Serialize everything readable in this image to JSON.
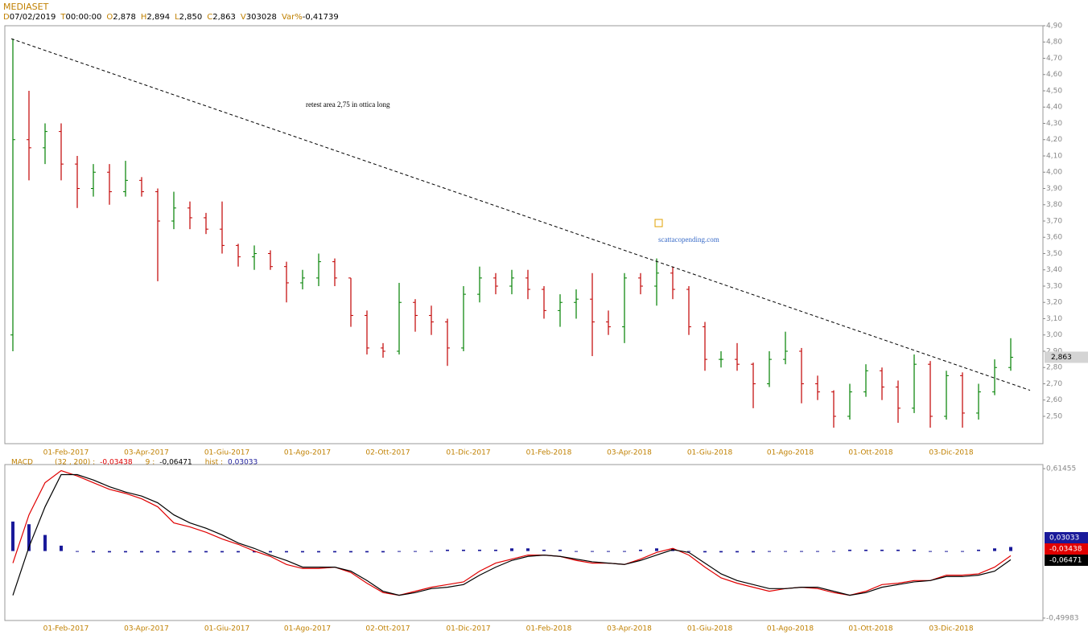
{
  "header": {
    "symbol": "MEDIASET",
    "fields": [
      {
        "label": "D",
        "value": "07/02/2019"
      },
      {
        "label": "T",
        "value": "00:00:00"
      },
      {
        "label": "O",
        "value": "2,878"
      },
      {
        "label": "H",
        "value": "2,894"
      },
      {
        "label": "L",
        "value": "2,850"
      },
      {
        "label": "C",
        "value": "2,863"
      },
      {
        "label": "V",
        "value": "303028"
      },
      {
        "label": "Var%",
        "value": "-0,41739"
      }
    ]
  },
  "chart_data": [
    {
      "type": "ohlc",
      "categories": [
        null,
        null,
        null,
        "01-Feb-2017",
        null,
        null,
        null,
        null,
        "03-Apr-2017",
        null,
        null,
        null,
        null,
        "01-Giu-2017",
        null,
        null,
        null,
        null,
        "01-Ago-2017",
        null,
        null,
        null,
        null,
        "02-Ott-2017",
        null,
        null,
        null,
        null,
        "01-Dic-2017",
        null,
        null,
        null,
        null,
        "01-Feb-2018",
        null,
        null,
        null,
        null,
        "03-Apr-2018",
        null,
        null,
        null,
        null,
        "01-Giu-2018",
        null,
        null,
        null,
        null,
        "01-Ago-2018",
        null,
        null,
        null,
        null,
        "01-Ott-2018",
        null,
        null,
        null,
        null,
        "03-Dic-2018",
        null,
        null,
        null,
        null
      ],
      "open": [
        3.0,
        4.2,
        4.15,
        4.25,
        4.05,
        3.9,
        4.0,
        3.88,
        3.95,
        3.88,
        3.7,
        3.78,
        3.72,
        3.65,
        3.55,
        3.48,
        3.5,
        3.42,
        3.32,
        3.35,
        3.45,
        3.35,
        3.12,
        2.92,
        2.9,
        3.2,
        3.12,
        3.08,
        2.92,
        3.25,
        3.35,
        3.3,
        3.35,
        3.28,
        3.15,
        3.2,
        3.22,
        3.08,
        3.05,
        3.35,
        3.3,
        3.38,
        3.28,
        3.05,
        2.85,
        2.85,
        2.82,
        2.7,
        2.85,
        2.9,
        2.7,
        2.65,
        2.5,
        2.65,
        2.78,
        2.68,
        2.55,
        2.82,
        2.5,
        2.75,
        2.52,
        2.65,
        2.8
      ],
      "high": [
        4.82,
        4.5,
        4.3,
        4.3,
        4.1,
        4.05,
        4.05,
        4.07,
        3.97,
        3.9,
        3.88,
        3.82,
        3.75,
        3.82,
        3.56,
        3.55,
        3.52,
        3.45,
        3.4,
        3.5,
        3.47,
        3.35,
        3.15,
        2.95,
        3.32,
        3.22,
        3.18,
        3.1,
        3.3,
        3.42,
        3.38,
        3.4,
        3.4,
        3.3,
        3.25,
        3.28,
        3.38,
        3.15,
        3.38,
        3.38,
        3.47,
        3.42,
        3.3,
        3.08,
        2.9,
        2.95,
        2.83,
        2.9,
        3.02,
        2.92,
        2.75,
        2.66,
        2.7,
        2.82,
        2.8,
        2.72,
        2.88,
        2.84,
        2.78,
        2.77,
        2.7,
        2.85,
        2.98
      ],
      "low": [
        2.9,
        3.95,
        4.05,
        3.95,
        3.78,
        3.85,
        3.8,
        3.85,
        3.85,
        3.33,
        3.65,
        3.65,
        3.62,
        3.5,
        3.42,
        3.4,
        3.4,
        3.2,
        3.28,
        3.3,
        3.3,
        3.05,
        2.88,
        2.86,
        2.88,
        3.02,
        3.0,
        2.81,
        2.9,
        3.2,
        3.25,
        3.25,
        3.22,
        3.1,
        3.05,
        3.1,
        2.87,
        3.0,
        2.95,
        3.25,
        3.18,
        3.22,
        3.0,
        2.78,
        2.8,
        2.78,
        2.55,
        2.68,
        2.82,
        2.58,
        2.6,
        2.43,
        2.48,
        2.62,
        2.6,
        2.46,
        2.52,
        2.43,
        2.48,
        2.43,
        2.48,
        2.63,
        2.78
      ],
      "close": [
        4.2,
        4.15,
        4.25,
        4.05,
        3.9,
        4.0,
        3.88,
        3.95,
        3.88,
        3.7,
        3.78,
        3.72,
        3.65,
        3.55,
        3.48,
        3.5,
        3.42,
        3.32,
        3.35,
        3.45,
        3.35,
        3.12,
        2.92,
        2.9,
        3.2,
        3.12,
        3.08,
        2.92,
        3.25,
        3.35,
        3.3,
        3.35,
        3.28,
        3.15,
        3.2,
        3.22,
        3.08,
        3.05,
        3.35,
        3.3,
        3.38,
        3.28,
        3.05,
        2.85,
        2.85,
        2.82,
        2.7,
        2.85,
        2.9,
        2.7,
        2.65,
        2.5,
        2.65,
        2.78,
        2.68,
        2.55,
        2.82,
        2.5,
        2.75,
        2.52,
        2.65,
        2.8,
        2.863
      ],
      "up_color": "#008000",
      "down_color": "#c00000",
      "ylim": [
        2.332,
        4.9
      ],
      "yticks": [
        {
          "value": 2.5,
          "label": "2,50"
        },
        {
          "value": 2.6,
          "label": "2,60"
        },
        {
          "value": 2.7,
          "label": "2,70"
        },
        {
          "value": 2.8,
          "label": "2,80"
        },
        {
          "value": 2.9,
          "label": "2,90"
        },
        {
          "value": 3.0,
          "label": "3,00"
        },
        {
          "value": 3.1,
          "label": "3,10"
        },
        {
          "value": 3.2,
          "label": "3,20"
        },
        {
          "value": 3.3,
          "label": "3,30"
        },
        {
          "value": 3.4,
          "label": "3,40"
        },
        {
          "value": 3.5,
          "label": "3,50"
        },
        {
          "value": 3.6,
          "label": "3,60"
        },
        {
          "value": 3.7,
          "label": "3,70"
        },
        {
          "value": 3.8,
          "label": "3,80"
        },
        {
          "value": 3.9,
          "label": "3,90"
        },
        {
          "value": 4.0,
          "label": "4,00"
        },
        {
          "value": 4.1,
          "label": "4,10"
        },
        {
          "value": 4.2,
          "label": "4,20"
        },
        {
          "value": 4.3,
          "label": "4,30"
        },
        {
          "value": 4.4,
          "label": "4,40"
        },
        {
          "value": 4.5,
          "label": "4,50"
        },
        {
          "value": 4.6,
          "label": "4,60"
        },
        {
          "value": 4.7,
          "label": "4,70"
        },
        {
          "value": 4.8,
          "label": "4,80"
        },
        {
          "value": 4.9,
          "label": "4,90"
        }
      ],
      "trendline": {
        "x": [
          -0.1,
          63.2
        ],
        "y": [
          4.82,
          2.66
        ]
      },
      "annotations": [
        "retest area 2,75 in ottica long",
        "scattacopending.com"
      ],
      "last_label": {
        "value": 2.863,
        "label": "2,863"
      }
    },
    {
      "type": "macd",
      "title": "MACD",
      "ylim": [
        -0.518,
        0.645
      ],
      "yticks": [
        {
          "value": 0.61455,
          "label": "0,61455"
        },
        {
          "value": -0.49983,
          "label": "-0,49983"
        }
      ],
      "series": [
        {
          "name": "(32 , 200) :",
          "color": "#e00000",
          "kind": "line",
          "last_label": "-0,03438",
          "values": [
            -0.09,
            0.27,
            0.51,
            0.6,
            0.56,
            0.51,
            0.46,
            0.43,
            0.39,
            0.33,
            0.21,
            0.18,
            0.14,
            0.09,
            0.05,
            0.0,
            -0.04,
            -0.1,
            -0.13,
            -0.13,
            -0.12,
            -0.16,
            -0.24,
            -0.31,
            -0.33,
            -0.3,
            -0.27,
            -0.25,
            -0.23,
            -0.15,
            -0.09,
            -0.06,
            -0.03,
            -0.03,
            -0.04,
            -0.07,
            -0.09,
            -0.09,
            -0.1,
            -0.06,
            -0.01,
            0.02,
            -0.03,
            -0.12,
            -0.2,
            -0.24,
            -0.27,
            -0.3,
            -0.28,
            -0.27,
            -0.28,
            -0.31,
            -0.33,
            -0.3,
            -0.25,
            -0.24,
            -0.22,
            -0.22,
            -0.18,
            -0.18,
            -0.17,
            -0.12,
            -0.03438
          ]
        },
        {
          "name": "9 :",
          "color": "#000000",
          "kind": "line",
          "last_label": "-0,06471",
          "values": [
            -0.33,
            0.03,
            0.33,
            0.57,
            0.57,
            0.53,
            0.48,
            0.44,
            0.41,
            0.36,
            0.27,
            0.21,
            0.17,
            0.12,
            0.06,
            0.02,
            -0.03,
            -0.07,
            -0.12,
            -0.12,
            -0.12,
            -0.15,
            -0.22,
            -0.3,
            -0.33,
            -0.31,
            -0.28,
            -0.27,
            -0.25,
            -0.18,
            -0.12,
            -0.07,
            -0.04,
            -0.03,
            -0.04,
            -0.06,
            -0.08,
            -0.09,
            -0.1,
            -0.07,
            -0.03,
            0.01,
            -0.01,
            -0.09,
            -0.17,
            -0.22,
            -0.25,
            -0.28,
            -0.28,
            -0.27,
            -0.27,
            -0.3,
            -0.33,
            -0.31,
            -0.27,
            -0.25,
            -0.23,
            -0.22,
            -0.19,
            -0.19,
            -0.18,
            -0.15,
            -0.06471
          ]
        },
        {
          "name": "hist :",
          "color": "#1a1a9a",
          "kind": "hist",
          "last_label": "0,03033",
          "values": [
            0.22,
            0.2,
            0.12,
            0.04,
            0.0,
            -0.01,
            -0.01,
            -0.01,
            -0.01,
            -0.01,
            -0.01,
            -0.01,
            -0.01,
            -0.01,
            -0.01,
            -0.01,
            -0.01,
            -0.01,
            -0.01,
            -0.01,
            -0.01,
            -0.01,
            -0.01,
            -0.01,
            0.0,
            0.0,
            0.0,
            0.01,
            0.01,
            0.01,
            0.01,
            0.02,
            0.02,
            0.01,
            0.01,
            0.0,
            0.0,
            0.0,
            0.0,
            0.01,
            0.02,
            0.02,
            0.0,
            -0.01,
            -0.01,
            -0.01,
            -0.01,
            0.0,
            0.0,
            0.0,
            0.0,
            0.0,
            0.01,
            0.01,
            0.01,
            0.01,
            0.01,
            0.0,
            0.0,
            0.0,
            0.01,
            0.02,
            0.03033
          ]
        }
      ]
    }
  ]
}
